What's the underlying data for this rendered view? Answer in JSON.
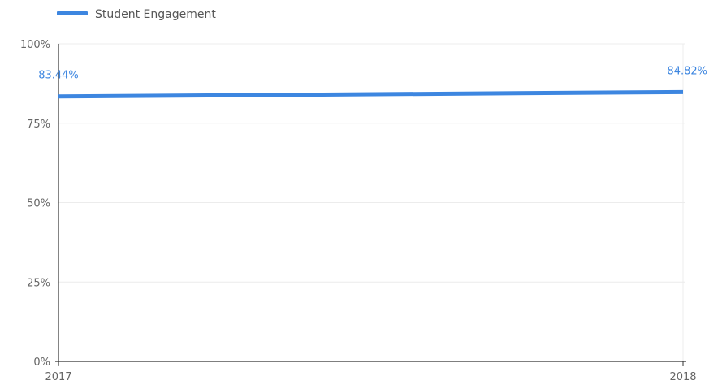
{
  "chart_data": {
    "type": "line",
    "x": [
      "2017",
      "2018"
    ],
    "series": [
      {
        "name": "Student Engagement",
        "values": [
          83.44,
          84.82
        ],
        "labels": [
          "83.44%",
          "84.82%"
        ]
      }
    ],
    "ylim": [
      0,
      100
    ],
    "yticks": [
      {
        "value": 0,
        "label": "0%"
      },
      {
        "value": 25,
        "label": "25%"
      },
      {
        "value": 50,
        "label": "50%"
      },
      {
        "value": 75,
        "label": "75%"
      },
      {
        "value": 100,
        "label": "100%"
      }
    ],
    "grid": true,
    "legend_position": "top-left",
    "colors": {
      "series": "#3d86e0",
      "axis": "#333333",
      "grid": "#ececec"
    }
  }
}
